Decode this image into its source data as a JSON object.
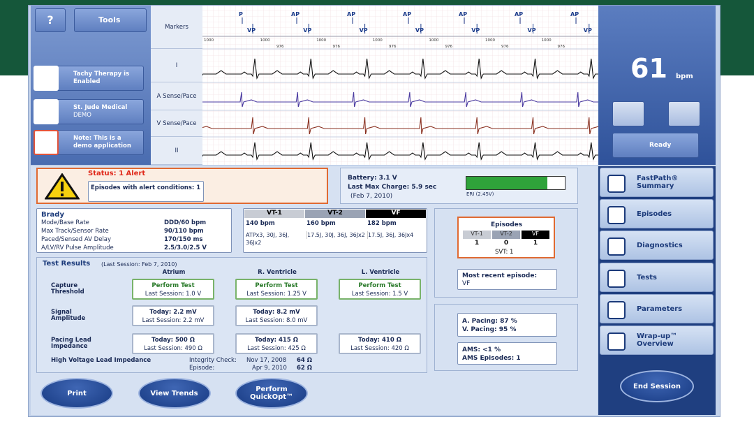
{
  "toolbar": {
    "help": "?",
    "tools": "Tools"
  },
  "sidebar": {
    "tachy": "Tachy Therapy is Enabled",
    "patient": "St. Jude Medical",
    "patient_sub": "DEMO",
    "note": "Note: This is a demo application"
  },
  "ecg": {
    "channels": [
      "Markers",
      "I",
      "A Sense/Pace",
      "V Sense/Pace",
      "II"
    ],
    "atrial_markers": [
      "P",
      "AP",
      "AP",
      "AP",
      "AP",
      "AP",
      "AP"
    ],
    "ventricular_markers": [
      "VP",
      "VP",
      "VP",
      "VP",
      "VP",
      "VP",
      "VP"
    ],
    "intervals_a": [
      "1000",
      "1000",
      "1000",
      "1000",
      "1000",
      "1000",
      "1000"
    ],
    "intervals_v": [
      "976",
      "976",
      "976",
      "976",
      "976",
      "976"
    ]
  },
  "rate": {
    "value": "61",
    "unit": "bpm",
    "status": "Ready"
  },
  "alert": {
    "status": "Status: 1 Alert",
    "detail": "Episodes with alert conditions: 1"
  },
  "battery": {
    "voltage": "Battery: 3.1 V",
    "charge": "Last Max Charge: 5.9 sec",
    "charge_date": "(Feb 7, 2010)",
    "eri": "ERI (2.45V)"
  },
  "brady": {
    "title": "Brady",
    "rows": [
      [
        "Mode/Base Rate",
        "DDD/60 bpm"
      ],
      [
        "Max Track/Sensor Rate",
        "90/110 bpm"
      ],
      [
        "Paced/Sensed AV Delay",
        "170/150 ms"
      ],
      [
        "A/LV/RV Pulse Amplitude",
        "2.5/3.0/2.5 V"
      ]
    ]
  },
  "zones": {
    "headers": [
      "VT-1",
      "VT-2",
      "VF"
    ],
    "rates": [
      "140 bpm",
      "160 bpm",
      "182 bpm"
    ],
    "therapies": [
      "ATPx3, 30J, 36J, 36Jx2",
      "17.5J, 30J, 36J, 36Jx2",
      "17.5J, 36J, 36Jx4"
    ]
  },
  "episodes": {
    "title": "Episodes",
    "headers": [
      "VT-1",
      "VT-2",
      "VF"
    ],
    "counts": [
      "1",
      "0",
      "1"
    ],
    "svt": "SVT: 1",
    "recent_label": "Most recent episode:",
    "recent_value": "VF"
  },
  "pacing": {
    "a": "A. Pacing: 87 %",
    "v": "V. Pacing: 95 %",
    "ams": "AMS: <1 %",
    "ams_episodes": "AMS Episodes: 1"
  },
  "tests": {
    "title": "Test Results",
    "session": "(Last Session: Feb 7, 2010)",
    "columns": [
      "Atrium",
      "R. Ventricle",
      "L. Ventricle"
    ],
    "rows": [
      {
        "label": "Capture Threshold",
        "cells": [
          [
            "Perform Test",
            "Last Session: 1.0 V"
          ],
          [
            "Perform Test",
            "Last Session: 1.25 V"
          ],
          [
            "Perform Test",
            "Last Session: 1.5 V"
          ]
        ]
      },
      {
        "label": "Signal Amplitude",
        "cells": [
          [
            "Today: 2.2 mV",
            "Last Session: 2.2 mV"
          ],
          [
            "Today: 8.2 mV",
            "Last Session: 8.0 mV"
          ]
        ]
      },
      {
        "label": "Pacing Lead Impedance",
        "cells": [
          [
            "Today: 500 Ω",
            "Last Session: 490 Ω"
          ],
          [
            "Today: 415 Ω",
            "Last Session: 425 Ω"
          ],
          [
            "Today: 410 Ω",
            "Last Session: 420 Ω"
          ]
        ]
      }
    ],
    "hv": {
      "label": "High Voltage Lead Impedance",
      "integrity": "Integrity Check:",
      "integrity_date": "Nov 17, 2008",
      "integrity_value": "64 Ω",
      "episode": "Episode:",
      "episode_date": "Apr 9, 2010",
      "episode_value": "62 Ω"
    }
  },
  "actions": [
    "Print",
    "View Trends",
    "Perform QuickOpt™"
  ],
  "nav": [
    "FastPath® Summary",
    "Episodes",
    "Diagnostics",
    "Tests",
    "Parameters",
    "Wrap-up™ Overview"
  ],
  "end": "End Session"
}
